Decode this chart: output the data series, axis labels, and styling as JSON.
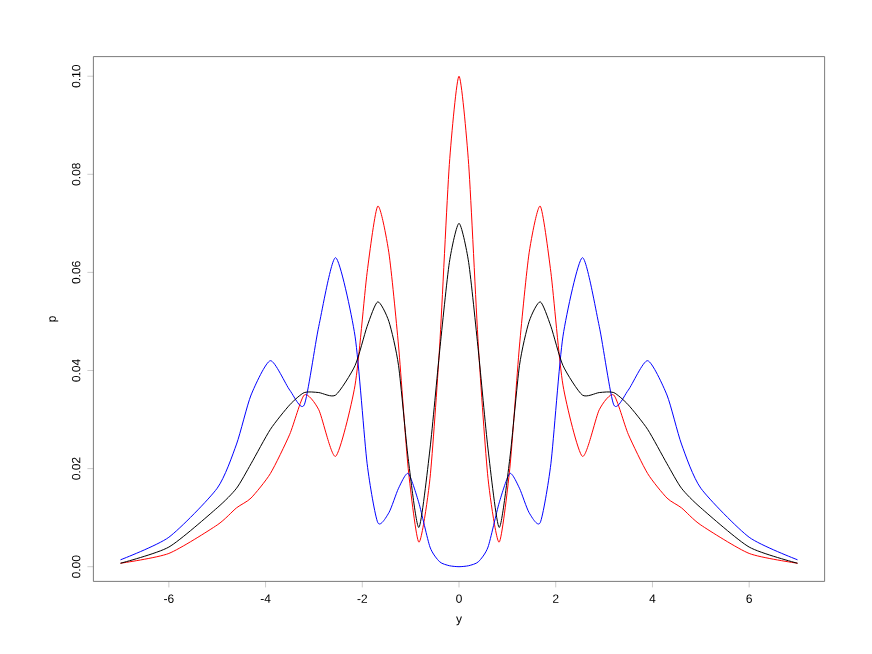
{
  "chart_data": {
    "type": "line",
    "xlabel": "y",
    "ylabel": "p",
    "x": [
      -7,
      -6,
      -5,
      -4.6,
      -4.3,
      -3.9,
      -3.5,
      -3.2,
      -2.9,
      -2.55,
      -2.15,
      -1.9,
      -1.68,
      -1.45,
      -1.25,
      -1.05,
      -0.83,
      -0.6,
      -0.4,
      -0.2,
      0,
      0.2,
      0.4,
      0.6,
      0.83,
      1.05,
      1.25,
      1.45,
      1.68,
      1.9,
      2.15,
      2.55,
      2.9,
      3.2,
      3.5,
      3.9,
      4.3,
      4.6,
      5,
      6,
      7
    ],
    "series": [
      {
        "color": "#ff0000",
        "values": [
          0.0007,
          0.0027,
          0.0085,
          0.012,
          0.014,
          0.019,
          0.027,
          0.035,
          0.032,
          0.0225,
          0.037,
          0.06,
          0.0735,
          0.064,
          0.045,
          0.02,
          0.005,
          0.018,
          0.045,
          0.082,
          0.1,
          0.082,
          0.045,
          0.018,
          0.005,
          0.02,
          0.045,
          0.064,
          0.0735,
          0.06,
          0.037,
          0.0225,
          0.032,
          0.035,
          0.027,
          0.019,
          0.014,
          0.012,
          0.0085,
          0.0027,
          0.0007
        ]
      },
      {
        "color": "#0000ff",
        "values": [
          0.0014,
          0.006,
          0.016,
          0.025,
          0.035,
          0.042,
          0.036,
          0.033,
          0.049,
          0.063,
          0.047,
          0.021,
          0.009,
          0.011,
          0.016,
          0.019,
          0.013,
          0.004,
          0.001,
          0.0002,
          0,
          0.0002,
          0.001,
          0.004,
          0.013,
          0.019,
          0.016,
          0.011,
          0.009,
          0.021,
          0.047,
          0.063,
          0.049,
          0.033,
          0.036,
          0.042,
          0.035,
          0.025,
          0.016,
          0.006,
          0.0014
        ]
      },
      {
        "color": "#000000",
        "values": [
          0.0007,
          0.004,
          0.012,
          0.016,
          0.021,
          0.028,
          0.033,
          0.0355,
          0.0355,
          0.035,
          0.041,
          0.049,
          0.054,
          0.05,
          0.041,
          0.022,
          0.008,
          0.024,
          0.044,
          0.062,
          0.07,
          0.062,
          0.044,
          0.024,
          0.008,
          0.022,
          0.041,
          0.05,
          0.054,
          0.049,
          0.041,
          0.035,
          0.0355,
          0.0355,
          0.033,
          0.028,
          0.021,
          0.016,
          0.012,
          0.004,
          0.0007
        ]
      }
    ],
    "xlim": [
      -7.56,
      7.56
    ],
    "ylim": [
      -0.003,
      0.104
    ],
    "xticks": [
      -6,
      -4,
      -2,
      0,
      2,
      4,
      6
    ],
    "yticks": [
      {
        "value": 0,
        "label": "0.00"
      },
      {
        "value": 0.02,
        "label": "0.02"
      },
      {
        "value": 0.04,
        "label": "0.04"
      },
      {
        "value": 0.06,
        "label": "0.06"
      },
      {
        "value": 0.08,
        "label": "0.08"
      },
      {
        "value": 0.1,
        "label": "0.10"
      }
    ],
    "marker": "none",
    "line_style": "solid"
  }
}
